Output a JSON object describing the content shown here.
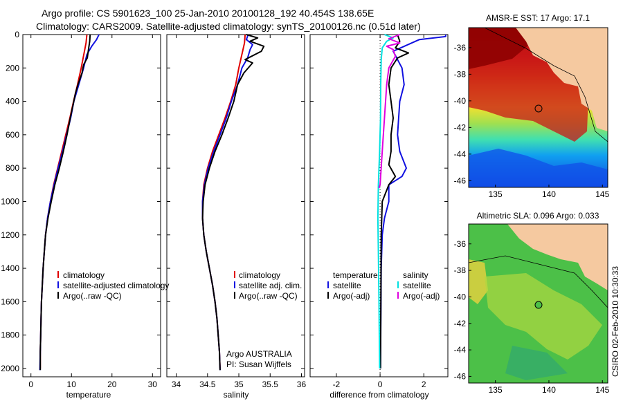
{
  "title_line1": "Argo profile: CS 5901623_100 25-Jan-2010 20100128_192 40.454S 138.65E",
  "title_line2": "Climatology: CARS2009. Satellite-adjusted climatology: synTS_20100126.nc (0.51d later)",
  "credit": "CSIRO 02-Feb-2010 10:30:33",
  "colors": {
    "climatology": "#e00000",
    "satellite": "#1010e0",
    "argo": "#000000",
    "sat_salinity": "#00e0e0",
    "argo_salinity": "#e000e0",
    "land": "#f5c9a0"
  },
  "chart_data": [
    {
      "type": "line",
      "id": "temperature",
      "xlabel": "temperature",
      "xlim": [
        -2,
        32
      ],
      "xticks": [
        0,
        10,
        20,
        30
      ],
      "ylim": [
        0,
        2050
      ],
      "yticks": [
        0,
        200,
        400,
        600,
        800,
        1000,
        1200,
        1400,
        1600,
        1800,
        2000
      ],
      "y_reversed": true,
      "legend": [
        "climatology",
        "satellite-adjusted climatology",
        "Argo(..raw -QC)"
      ],
      "series": [
        {
          "name": "climatology",
          "color": "#e00000",
          "points": [
            [
              13.8,
              0
            ],
            [
              13.6,
              50
            ],
            [
              13.2,
              100
            ],
            [
              12.4,
              200
            ],
            [
              11.5,
              300
            ],
            [
              10.5,
              400
            ],
            [
              9.6,
              500
            ],
            [
              8.6,
              600
            ],
            [
              7.6,
              700
            ],
            [
              6.6,
              800
            ],
            [
              5.6,
              900
            ],
            [
              4.8,
              1000
            ],
            [
              4.1,
              1100
            ],
            [
              3.6,
              1200
            ],
            [
              3.3,
              1300
            ],
            [
              3.0,
              1400
            ],
            [
              2.8,
              1500
            ],
            [
              2.6,
              1600
            ],
            [
              2.5,
              1700
            ],
            [
              2.4,
              1800
            ],
            [
              2.3,
              1900
            ],
            [
              2.3,
              2000
            ]
          ]
        },
        {
          "name": "satellite-adjusted climatology",
          "color": "#1010e0",
          "points": [
            [
              16.8,
              0
            ],
            [
              16.2,
              30
            ],
            [
              15.0,
              70
            ],
            [
              13.8,
              120
            ],
            [
              13.0,
              200
            ],
            [
              11.8,
              300
            ],
            [
              10.6,
              400
            ],
            [
              9.8,
              500
            ],
            [
              8.8,
              600
            ],
            [
              7.8,
              700
            ],
            [
              6.7,
              800
            ],
            [
              5.7,
              900
            ],
            [
              4.8,
              1000
            ],
            [
              4.1,
              1100
            ],
            [
              3.6,
              1200
            ],
            [
              3.3,
              1300
            ],
            [
              3.0,
              1400
            ],
            [
              2.8,
              1500
            ],
            [
              2.6,
              1600
            ],
            [
              2.5,
              1700
            ],
            [
              2.4,
              1800
            ],
            [
              2.3,
              1900
            ],
            [
              2.2,
              2010
            ]
          ]
        },
        {
          "name": "Argo(..raw -QC)",
          "color": "#000000",
          "points": [
            [
              14.6,
              0
            ],
            [
              14.5,
              40
            ],
            [
              14.2,
              90
            ],
            [
              13.9,
              140
            ],
            [
              13.0,
              180
            ],
            [
              12.6,
              230
            ],
            [
              11.6,
              300
            ],
            [
              11.0,
              350
            ],
            [
              10.4,
              420
            ],
            [
              9.7,
              500
            ],
            [
              8.9,
              600
            ],
            [
              8.0,
              700
            ],
            [
              7.0,
              800
            ],
            [
              5.9,
              900
            ],
            [
              5.0,
              1000
            ],
            [
              4.2,
              1100
            ],
            [
              3.6,
              1200
            ],
            [
              3.3,
              1300
            ],
            [
              3.0,
              1400
            ],
            [
              2.8,
              1500
            ],
            [
              2.6,
              1600
            ],
            [
              2.5,
              1700
            ],
            [
              2.4,
              1800
            ],
            [
              2.3,
              1900
            ],
            [
              2.3,
              2010
            ]
          ]
        }
      ]
    },
    {
      "type": "line",
      "id": "salinity",
      "xlabel": "salinity",
      "xlim": [
        33.85,
        36.05
      ],
      "xticks": [
        34,
        34.5,
        35,
        35.5,
        36
      ],
      "ylim": [
        0,
        2050
      ],
      "y_reversed": true,
      "legend": [
        "climatology",
        "satellite adj. clim.",
        "Argo(..raw -QC)"
      ],
      "annotation": [
        "Argo AUSTRALIA",
        "PI: Susan Wijffels"
      ],
      "series": [
        {
          "name": "climatology",
          "color": "#e00000",
          "points": [
            [
              35.1,
              0
            ],
            [
              35.09,
              50
            ],
            [
              35.06,
              100
            ],
            [
              35.0,
              200
            ],
            [
              34.95,
              300
            ],
            [
              34.87,
              400
            ],
            [
              34.78,
              500
            ],
            [
              34.68,
              600
            ],
            [
              34.58,
              700
            ],
            [
              34.5,
              800
            ],
            [
              34.44,
              900
            ],
            [
              34.42,
              1000
            ],
            [
              34.42,
              1100
            ],
            [
              34.44,
              1200
            ],
            [
              34.48,
              1300
            ],
            [
              34.53,
              1400
            ],
            [
              34.58,
              1500
            ],
            [
              34.62,
              1600
            ],
            [
              34.65,
              1700
            ],
            [
              34.67,
              1800
            ],
            [
              34.69,
              1900
            ],
            [
              34.7,
              2000
            ]
          ]
        },
        {
          "name": "satellite adj. clim.",
          "color": "#1010e0",
          "points": [
            [
              35.15,
              0
            ],
            [
              35.12,
              30
            ],
            [
              35.22,
              60
            ],
            [
              35.18,
              90
            ],
            [
              35.14,
              140
            ],
            [
              35.05,
              200
            ],
            [
              34.98,
              300
            ],
            [
              34.88,
              400
            ],
            [
              34.8,
              500
            ],
            [
              34.7,
              600
            ],
            [
              34.6,
              700
            ],
            [
              34.51,
              800
            ],
            [
              34.45,
              900
            ],
            [
              34.42,
              1000
            ],
            [
              34.42,
              1100
            ],
            [
              34.44,
              1200
            ],
            [
              34.48,
              1300
            ],
            [
              34.53,
              1400
            ],
            [
              34.58,
              1500
            ],
            [
              34.62,
              1600
            ],
            [
              34.65,
              1700
            ],
            [
              34.67,
              1800
            ],
            [
              34.69,
              1900
            ],
            [
              34.7,
              2010
            ]
          ]
        },
        {
          "name": "Argo(..raw -QC)",
          "color": "#000000",
          "points": [
            [
              35.12,
              0
            ],
            [
              35.3,
              20
            ],
            [
              35.18,
              40
            ],
            [
              35.4,
              70
            ],
            [
              35.36,
              100
            ],
            [
              35.1,
              150
            ],
            [
              35.22,
              170
            ],
            [
              35.08,
              230
            ],
            [
              34.98,
              300
            ],
            [
              34.92,
              400
            ],
            [
              34.83,
              500
            ],
            [
              34.73,
              600
            ],
            [
              34.62,
              700
            ],
            [
              34.53,
              800
            ],
            [
              34.46,
              900
            ],
            [
              34.43,
              1000
            ],
            [
              34.42,
              1100
            ],
            [
              34.44,
              1200
            ],
            [
              34.48,
              1300
            ],
            [
              34.53,
              1400
            ],
            [
              34.58,
              1500
            ],
            [
              34.62,
              1600
            ],
            [
              34.65,
              1700
            ],
            [
              34.67,
              1800
            ],
            [
              34.69,
              1900
            ],
            [
              34.7,
              2010
            ]
          ]
        }
      ]
    },
    {
      "type": "line",
      "id": "difference",
      "xlabel": "difference from climatology",
      "xlim": [
        -3.2,
        3.1
      ],
      "xticks": [
        -2,
        0,
        2
      ],
      "ylim": [
        0,
        2050
      ],
      "y_reversed": true,
      "legend_headers": [
        "temperature",
        "salinity"
      ],
      "legend": [
        "satellite",
        "Argo(-adj)",
        "satellite",
        "Argo(-adj)"
      ],
      "series": [
        {
          "name": "temperature satellite",
          "color": "#1010e0",
          "points": [
            [
              3.0,
              0
            ],
            [
              3.0,
              12
            ],
            [
              1.8,
              30
            ],
            [
              0.6,
              100
            ],
            [
              0.8,
              150
            ],
            [
              1.0,
              200
            ],
            [
              1.1,
              300
            ],
            [
              0.9,
              400
            ],
            [
              0.8,
              600
            ],
            [
              0.9,
              700
            ],
            [
              1.2,
              800
            ],
            [
              1.0,
              850
            ],
            [
              0.4,
              900
            ],
            [
              0.4,
              1000
            ],
            [
              0.2,
              1100
            ],
            [
              0.1,
              1200
            ],
            [
              0.05,
              1400
            ],
            [
              0.02,
              2000
            ]
          ]
        },
        {
          "name": "temperature Argo(-adj)",
          "color": "#000000",
          "points": [
            [
              0.8,
              0
            ],
            [
              0.9,
              40
            ],
            [
              0.7,
              80
            ],
            [
              1.3,
              110
            ],
            [
              0.8,
              140
            ],
            [
              0.5,
              200
            ],
            [
              0.4,
              300
            ],
            [
              0.5,
              400
            ],
            [
              0.6,
              500
            ],
            [
              0.5,
              600
            ],
            [
              0.5,
              700
            ],
            [
              0.4,
              780
            ],
            [
              0.7,
              850
            ],
            [
              0.4,
              900
            ],
            [
              0.1,
              1000
            ],
            [
              0.05,
              1200
            ],
            [
              0.02,
              2000
            ]
          ]
        },
        {
          "name": "salinity satellite",
          "color": "#00e0e0",
          "points": [
            [
              0.2,
              0
            ],
            [
              0.6,
              20
            ],
            [
              0.3,
              40
            ],
            [
              0.1,
              80
            ],
            [
              0.05,
              150
            ],
            [
              0.03,
              300
            ],
            [
              0.02,
              500
            ],
            [
              -0.02,
              700
            ],
            [
              -0.08,
              900
            ],
            [
              -0.1,
              1100
            ],
            [
              -0.08,
              1300
            ],
            [
              -0.05,
              1600
            ],
            [
              -0.02,
              2000
            ]
          ]
        },
        {
          "name": "salinity Argo(-adj)",
          "color": "#e000e0",
          "points": [
            [
              0.9,
              0
            ],
            [
              0.4,
              25
            ],
            [
              0.9,
              50
            ],
            [
              0.3,
              70
            ],
            [
              0.6,
              90
            ],
            [
              0.7,
              130
            ],
            [
              0.4,
              200
            ],
            [
              0.3,
              300
            ],
            [
              0.2,
              500
            ],
            [
              0.1,
              700
            ],
            [
              0.0,
              900
            ],
            [
              -0.05,
              920
            ]
          ]
        }
      ]
    },
    {
      "type": "heatmap",
      "id": "sst-map",
      "title": "AMSR-E SST: 17 Argo: 17.1",
      "xlim": [
        132.5,
        145.5
      ],
      "ylim": [
        -46.5,
        -34.5
      ],
      "xticks": [
        135,
        140,
        145
      ],
      "yticks": [
        -36,
        -38,
        -40,
        -42,
        -44,
        -46
      ],
      "marker": [
        138.65,
        -40.454
      ]
    },
    {
      "type": "heatmap",
      "id": "sla-map",
      "title": "Altimetric SLA: 0.096 Argo: 0.033",
      "xlim": [
        132.5,
        145.5
      ],
      "ylim": [
        -46.5,
        -34.5
      ],
      "xticks": [
        135,
        140,
        145
      ],
      "yticks": [
        -36,
        -38,
        -40,
        -42,
        -44,
        -46
      ],
      "marker": [
        138.65,
        -40.454
      ]
    }
  ]
}
